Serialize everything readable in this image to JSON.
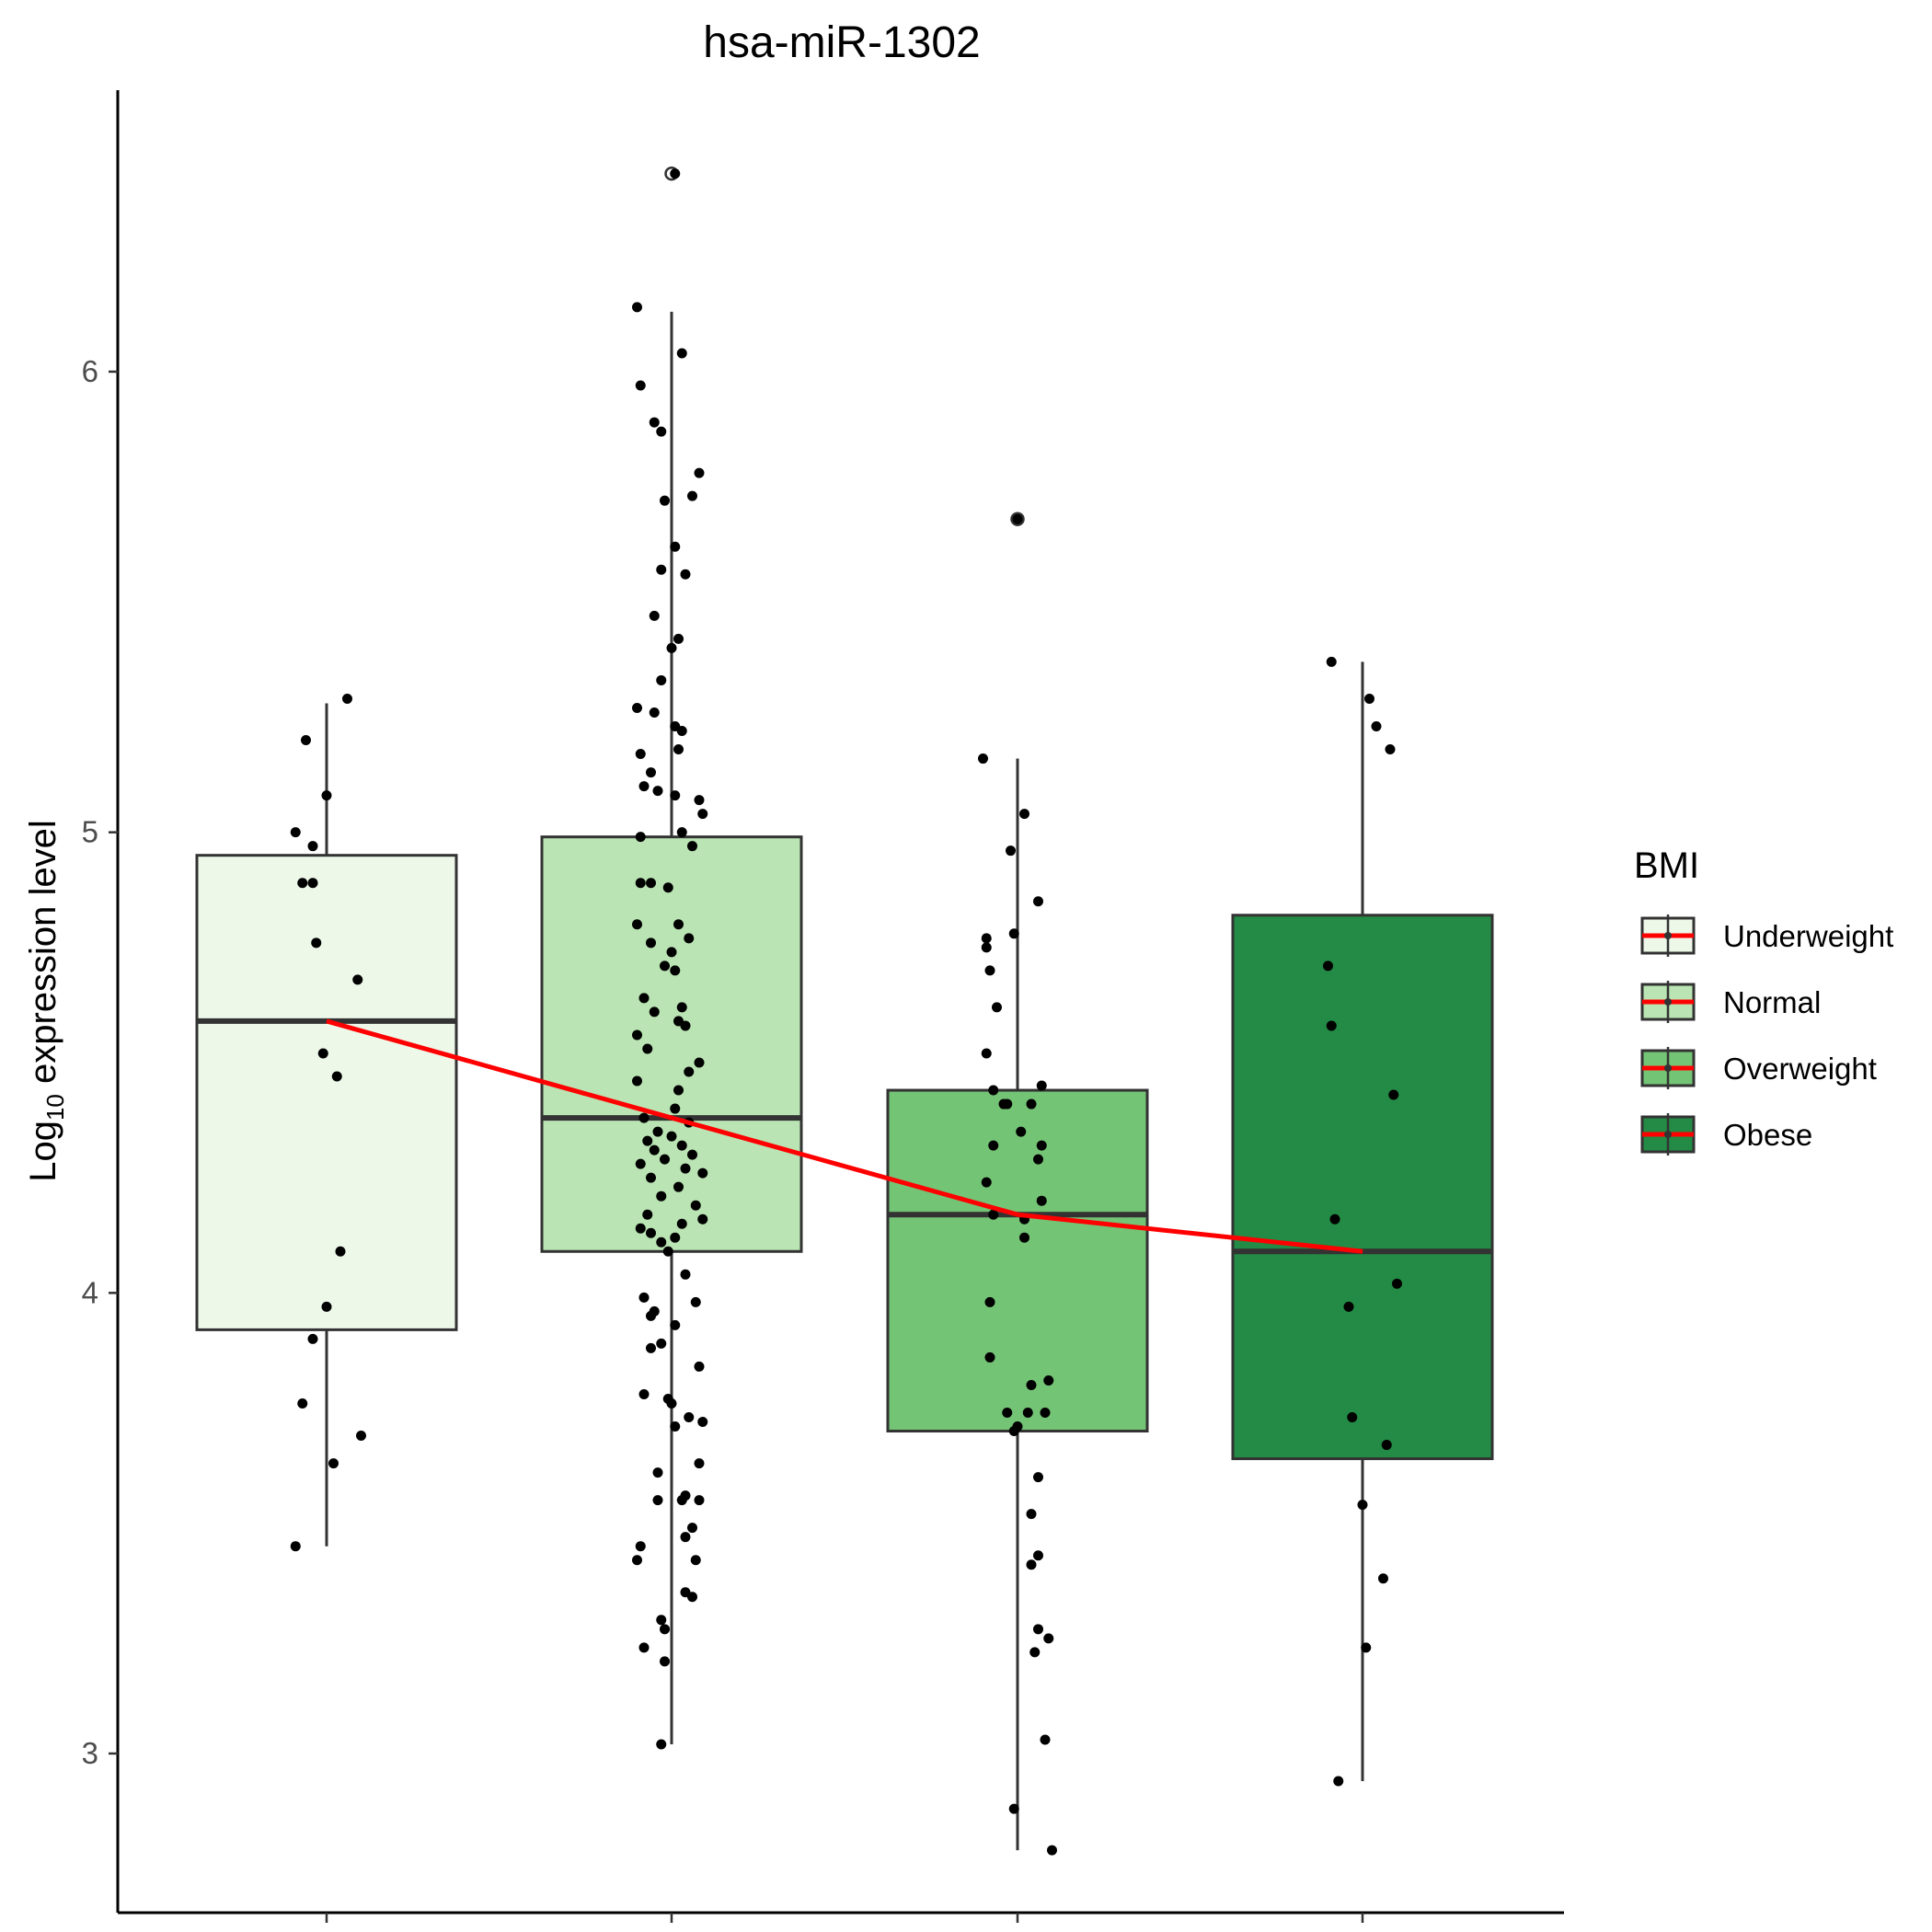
{
  "chart_data": {
    "type": "box",
    "title": "hsa-miR-1302",
    "ylabel_main": "Log",
    "ylabel_sub": "10",
    "ylabel_rest": " expression level",
    "xlabel": "",
    "ylim": [
      2.63,
      6.6
    ],
    "yticks": [
      3,
      4,
      5,
      6
    ],
    "categories": [
      "Underweight",
      "Normal",
      "Overweight",
      "Obese"
    ],
    "colors": [
      "#edf8e9",
      "#bae4b3",
      "#74c476",
      "#238b45"
    ],
    "boxes": [
      {
        "name": "Underweight",
        "whisker_low": 3.45,
        "q1": 3.92,
        "median": 4.59,
        "q3": 4.95,
        "whisker_high": 5.28,
        "outliers": []
      },
      {
        "name": "Normal",
        "whisker_low": 3.02,
        "q1": 4.09,
        "median": 4.38,
        "q3": 4.99,
        "whisker_high": 6.13,
        "outliers": [
          6.43
        ]
      },
      {
        "name": "Overweight",
        "whisker_low": 2.79,
        "q1": 3.7,
        "median": 4.17,
        "q3": 4.44,
        "whisker_high": 5.16,
        "outliers": [
          5.68
        ]
      },
      {
        "name": "Obese",
        "whisker_low": 2.94,
        "q1": 3.64,
        "median": 4.09,
        "q3": 4.82,
        "whisker_high": 5.37,
        "outliers": []
      }
    ],
    "trend_line": {
      "color": "#ff0000",
      "values": [
        4.59,
        4.38,
        4.17,
        4.09
      ]
    },
    "legend": {
      "title": "BMI",
      "position": "right",
      "entries": [
        "Underweight",
        "Normal",
        "Overweight",
        "Obese"
      ]
    },
    "points": [
      [
        [
          5.29,
          0.06
        ],
        [
          5.2,
          -0.06
        ],
        [
          5.08,
          0.0
        ],
        [
          5.0,
          -0.09
        ],
        [
          4.97,
          -0.04
        ],
        [
          4.89,
          -0.07
        ],
        [
          4.89,
          -0.04
        ],
        [
          4.76,
          -0.03
        ],
        [
          4.68,
          0.09
        ],
        [
          4.52,
          -0.01
        ],
        [
          4.47,
          0.03
        ],
        [
          4.09,
          0.04
        ],
        [
          3.97,
          0.0
        ],
        [
          3.9,
          -0.04
        ],
        [
          3.76,
          -0.07
        ],
        [
          3.69,
          0.1
        ],
        [
          3.63,
          0.02
        ],
        [
          3.45,
          -0.09
        ]
      ],
      [
        [
          6.43,
          0.01
        ],
        [
          6.14,
          -0.1
        ],
        [
          6.04,
          0.03
        ],
        [
          5.97,
          -0.09
        ],
        [
          5.89,
          -0.05
        ],
        [
          5.87,
          -0.03
        ],
        [
          5.78,
          0.08
        ],
        [
          5.73,
          0.06
        ],
        [
          5.72,
          -0.02
        ],
        [
          5.62,
          0.01
        ],
        [
          5.57,
          -0.03
        ],
        [
          5.56,
          0.04
        ],
        [
          5.47,
          -0.05
        ],
        [
          5.42,
          0.02
        ],
        [
          5.4,
          0.0
        ],
        [
          5.33,
          -0.03
        ],
        [
          5.27,
          -0.1
        ],
        [
          5.26,
          -0.05
        ],
        [
          5.23,
          0.01
        ],
        [
          5.22,
          0.03
        ],
        [
          5.18,
          0.02
        ],
        [
          5.17,
          -0.09
        ],
        [
          5.13,
          -0.06
        ],
        [
          5.1,
          -0.08
        ],
        [
          5.09,
          -0.04
        ],
        [
          5.08,
          0.01
        ],
        [
          5.07,
          0.08
        ],
        [
          5.04,
          0.09
        ],
        [
          5.0,
          0.03
        ],
        [
          4.99,
          -0.09
        ],
        [
          4.97,
          0.06
        ],
        [
          4.89,
          -0.09
        ],
        [
          4.88,
          -0.01
        ],
        [
          4.89,
          -0.06
        ],
        [
          4.8,
          -0.1
        ],
        [
          4.8,
          0.02
        ],
        [
          4.77,
          0.05
        ],
        [
          4.76,
          -0.06
        ],
        [
          4.74,
          0.0
        ],
        [
          4.71,
          -0.02
        ],
        [
          4.7,
          0.01
        ],
        [
          4.64,
          -0.08
        ],
        [
          4.62,
          0.03
        ],
        [
          4.61,
          -0.05
        ],
        [
          4.59,
          0.02
        ],
        [
          4.58,
          0.04
        ],
        [
          4.56,
          -0.1
        ],
        [
          4.53,
          -0.07
        ],
        [
          4.5,
          0.08
        ],
        [
          4.48,
          0.05
        ],
        [
          4.46,
          -0.1
        ],
        [
          4.44,
          0.02
        ],
        [
          4.4,
          0.01
        ],
        [
          4.38,
          -0.08
        ],
        [
          4.37,
          0.05
        ],
        [
          4.35,
          -0.04
        ],
        [
          4.34,
          0.0
        ],
        [
          4.33,
          -0.07
        ],
        [
          4.32,
          0.03
        ],
        [
          4.31,
          -0.05
        ],
        [
          4.3,
          0.06
        ],
        [
          4.29,
          -0.02
        ],
        [
          4.28,
          -0.09
        ],
        [
          4.27,
          0.04
        ],
        [
          4.26,
          0.09
        ],
        [
          4.25,
          -0.06
        ],
        [
          4.23,
          0.02
        ],
        [
          4.21,
          -0.03
        ],
        [
          4.19,
          0.07
        ],
        [
          4.17,
          -0.07
        ],
        [
          4.16,
          0.09
        ],
        [
          4.15,
          0.03
        ],
        [
          4.14,
          -0.09
        ],
        [
          4.13,
          -0.06
        ],
        [
          4.12,
          0.01
        ],
        [
          4.11,
          -0.03
        ],
        [
          4.09,
          -0.01
        ],
        [
          4.04,
          0.04
        ],
        [
          3.99,
          -0.08
        ],
        [
          3.98,
          0.07
        ],
        [
          3.96,
          -0.05
        ],
        [
          3.95,
          -0.06
        ],
        [
          3.93,
          0.01
        ],
        [
          3.89,
          -0.03
        ],
        [
          3.88,
          -0.06
        ],
        [
          3.84,
          0.08
        ],
        [
          3.78,
          -0.08
        ],
        [
          3.77,
          -0.01
        ],
        [
          3.76,
          0.0
        ],
        [
          3.73,
          0.05
        ],
        [
          3.72,
          0.09
        ],
        [
          3.71,
          0.01
        ],
        [
          3.63,
          0.08
        ],
        [
          3.61,
          -0.04
        ],
        [
          3.56,
          0.04
        ],
        [
          3.55,
          -0.04
        ],
        [
          3.55,
          0.03
        ],
        [
          3.55,
          0.08
        ],
        [
          3.49,
          0.06
        ],
        [
          3.47,
          0.04
        ],
        [
          3.45,
          -0.09
        ],
        [
          3.42,
          0.07
        ],
        [
          3.42,
          -0.1
        ],
        [
          3.35,
          0.04
        ],
        [
          3.34,
          0.06
        ],
        [
          3.29,
          -0.03
        ],
        [
          3.27,
          -0.02
        ],
        [
          3.23,
          -0.08
        ],
        [
          3.2,
          -0.02
        ],
        [
          3.02,
          -0.03
        ]
      ],
      [
        [
          5.68,
          0.0
        ],
        [
          5.16,
          -0.1
        ],
        [
          5.04,
          0.02
        ],
        [
          4.96,
          -0.02
        ],
        [
          4.85,
          0.06
        ],
        [
          4.78,
          -0.01
        ],
        [
          4.77,
          -0.09
        ],
        [
          4.75,
          -0.09
        ],
        [
          4.7,
          -0.08
        ],
        [
          4.62,
          -0.06
        ],
        [
          4.52,
          -0.09
        ],
        [
          4.45,
          0.07
        ],
        [
          4.44,
          -0.07
        ],
        [
          4.41,
          -0.03
        ],
        [
          4.41,
          -0.04
        ],
        [
          4.41,
          0.04
        ],
        [
          4.35,
          0.01
        ],
        [
          4.32,
          -0.07
        ],
        [
          4.32,
          0.07
        ],
        [
          4.29,
          0.06
        ],
        [
          4.24,
          -0.09
        ],
        [
          4.2,
          0.07
        ],
        [
          4.17,
          -0.07
        ],
        [
          4.16,
          0.02
        ],
        [
          4.12,
          0.02
        ],
        [
          3.98,
          -0.08
        ],
        [
          3.86,
          -0.08
        ],
        [
          3.81,
          0.09
        ],
        [
          3.8,
          0.04
        ],
        [
          3.74,
          -0.03
        ],
        [
          3.74,
          0.03
        ],
        [
          3.74,
          0.08
        ],
        [
          3.71,
          0.0
        ],
        [
          3.7,
          -0.01
        ],
        [
          3.6,
          0.06
        ],
        [
          3.52,
          0.04
        ],
        [
          3.43,
          0.06
        ],
        [
          3.41,
          0.04
        ],
        [
          3.27,
          0.06
        ],
        [
          3.25,
          0.09
        ],
        [
          3.22,
          0.05
        ],
        [
          3.03,
          0.08
        ],
        [
          2.88,
          -0.01
        ],
        [
          2.79,
          0.1
        ]
      ],
      [
        [
          5.37,
          -0.09
        ],
        [
          5.29,
          0.02
        ],
        [
          5.23,
          0.04
        ],
        [
          5.18,
          0.08
        ],
        [
          4.71,
          -0.1
        ],
        [
          4.58,
          -0.09
        ],
        [
          4.43,
          0.09
        ],
        [
          4.16,
          -0.08
        ],
        [
          4.02,
          0.1
        ],
        [
          3.97,
          -0.04
        ],
        [
          3.73,
          -0.03
        ],
        [
          3.67,
          0.07
        ],
        [
          3.54,
          0.0
        ],
        [
          3.38,
          0.06
        ],
        [
          3.23,
          0.01
        ],
        [
          2.94,
          -0.07
        ]
      ]
    ]
  }
}
